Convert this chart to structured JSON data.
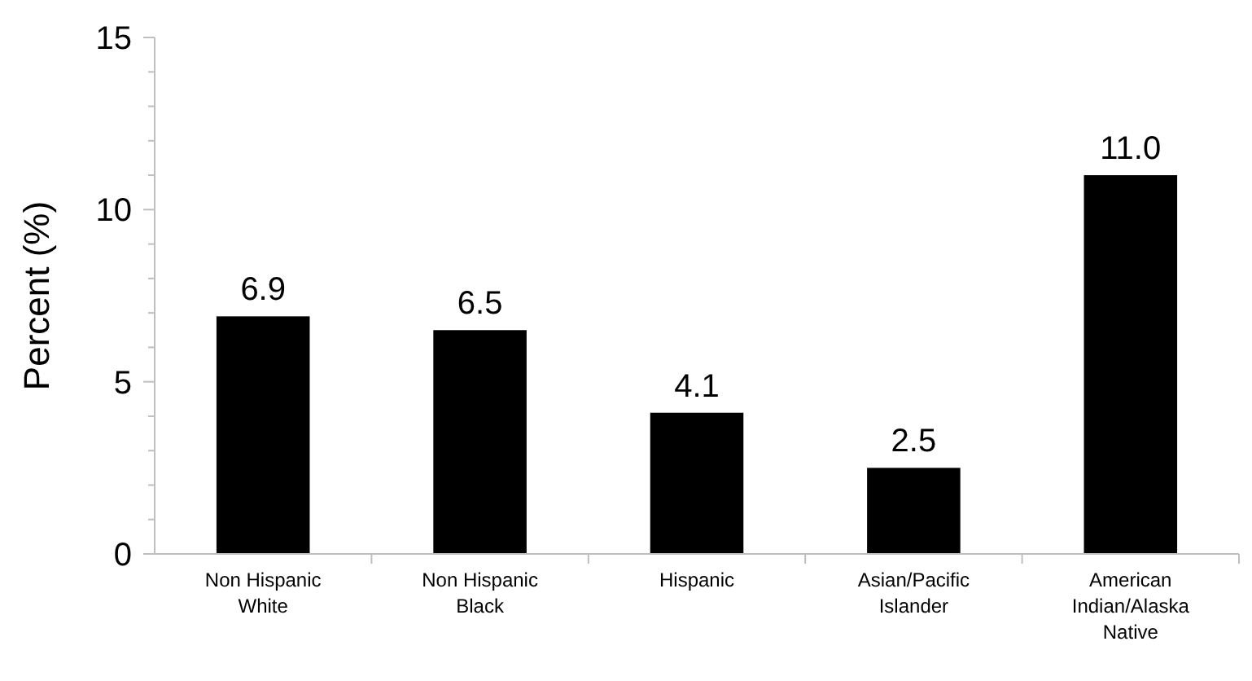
{
  "chart_data": {
    "type": "bar",
    "ylabel": "Percent  (%)",
    "categories": [
      "Non Hispanic White",
      "Non Hispanic Black",
      "Hispanic",
      "Asian/Pacific Islander",
      "American Indian/Alaska Native"
    ],
    "values": [
      6.9,
      6.5,
      4.1,
      2.5,
      11.0
    ],
    "value_labels": [
      "6.9",
      "6.5",
      "4.1",
      "2.5",
      "11.0"
    ],
    "color": "#000000",
    "ylim": [
      0,
      15
    ],
    "yticks": [
      0,
      {
        "value": 1,
        "label": null
      },
      {
        "value": 2,
        "label": null
      },
      {
        "value": 3,
        "label": null
      },
      {
        "value": 4,
        "label": null
      },
      5,
      {
        "value": 6,
        "label": null
      },
      {
        "value": 7,
        "label": null
      },
      {
        "value": 8,
        "label": null
      },
      {
        "value": 9,
        "label": null
      },
      10,
      {
        "value": 11,
        "label": null
      },
      {
        "value": 12,
        "label": null
      },
      {
        "value": 13,
        "label": null
      },
      {
        "value": 14,
        "label": null
      },
      15
    ],
    "grid": false
  }
}
